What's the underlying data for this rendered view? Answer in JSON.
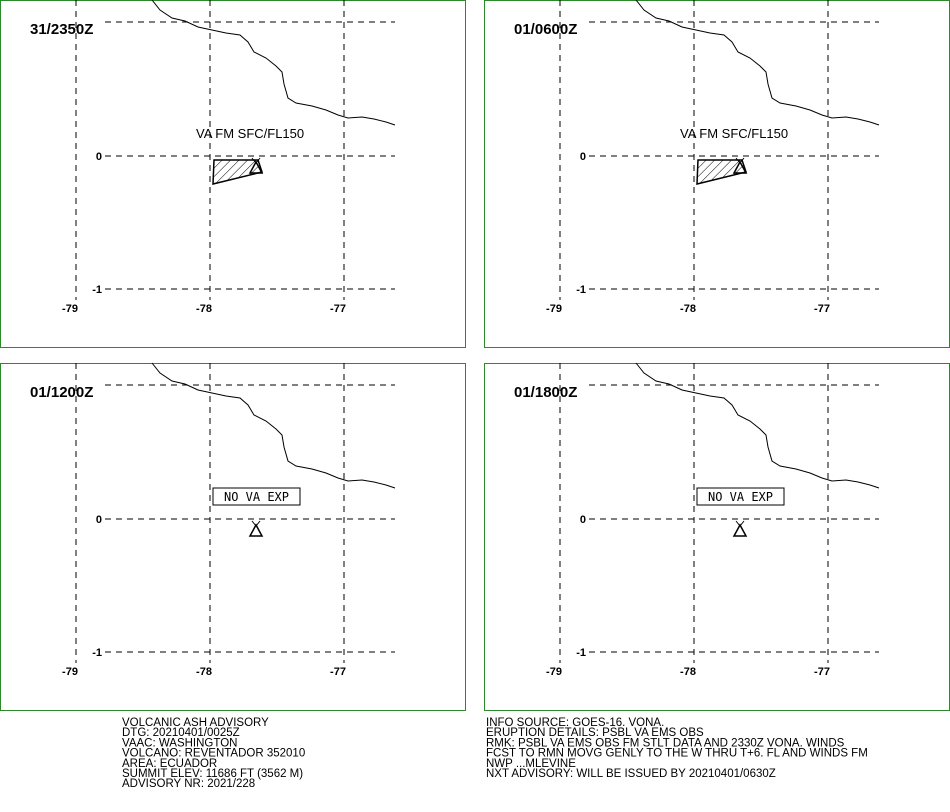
{
  "panels": [
    {
      "time": "31/2350Z",
      "annotation": "VA FM SFC/FL150"
    },
    {
      "time": "01/0600Z",
      "annotation": "VA FM SFC/FL150"
    },
    {
      "time": "01/1200Z",
      "annotation": "NO VA EXP"
    },
    {
      "time": "01/1800Z",
      "annotation": "NO VA EXP"
    }
  ],
  "grid": {
    "lat_labels": [
      "0",
      "-1"
    ],
    "lon_labels": [
      "-79",
      "-78",
      "-77"
    ]
  },
  "advisory_left": [
    "VOLCANIC ASH ADVISORY",
    "DTG: 20210401/0025Z",
    "VAAC: WASHINGTON",
    "VOLCANO: REVENTADOR 352010",
    "AREA: ECUADOR",
    "SUMMIT ELEV: 11686 FT (3562 M)",
    "ADVISORY NR: 2021/228"
  ],
  "advisory_right": [
    "INFO SOURCE: GOES-16. VONA.",
    "ERUPTION DETAILS: PSBL VA EMS OBS",
    "RMK: PSBL VA EMS OBS FM STLT DATA AND 2330Z VONA. WINDS",
    "FCST TO RMN MOVG GENLY TO THE W THRU T+6. FL AND WINDS FM",
    "NWP ...MLEVINE",
    "NXT ADVISORY: WILL BE ISSUED BY 20210401/0630Z"
  ]
}
